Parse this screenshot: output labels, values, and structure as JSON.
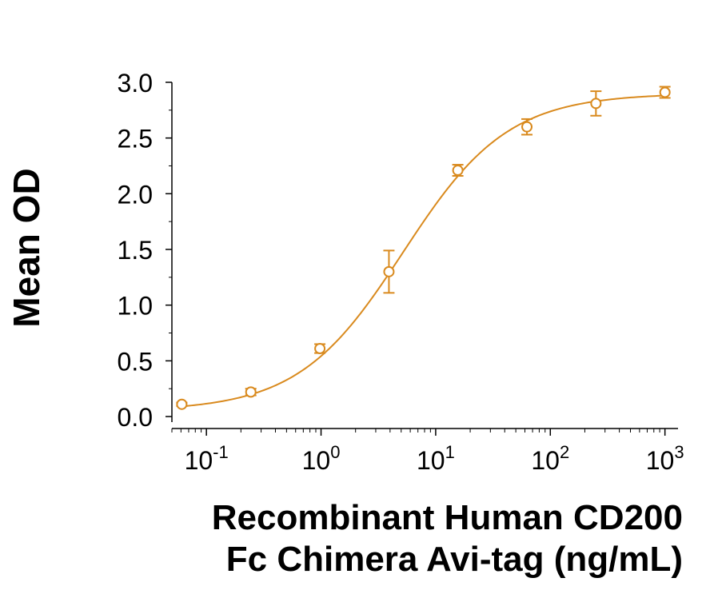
{
  "chart_data": {
    "type": "scatter",
    "title": "",
    "ylabel": "Mean OD",
    "xlabel_lines": [
      "Recombinant Human CD200",
      "Fc Chimera Avi-tag (ng/mL)"
    ],
    "xscale": "log",
    "xlim": [
      0.05,
      1300
    ],
    "ylim": [
      -0.05,
      3.1
    ],
    "grid": false,
    "legend": "none",
    "color": "#d98a1e",
    "y_ticks": [
      "0.0",
      "0.5",
      "1.0",
      "1.5",
      "2.0",
      "2.5",
      "3.0"
    ],
    "x_ticks": [
      {
        "base": "10",
        "exp": "-1"
      },
      {
        "base": "10",
        "exp": "0"
      },
      {
        "base": "10",
        "exp": "1"
      },
      {
        "base": "10",
        "exp": "2"
      },
      {
        "base": "10",
        "exp": "3"
      }
    ],
    "series": [
      {
        "x": [
          0.061,
          0.244,
          0.977,
          3.91,
          15.6,
          62.5,
          250,
          1000
        ],
        "y": [
          0.11,
          0.22,
          0.61,
          1.3,
          2.21,
          2.6,
          2.81,
          2.91
        ],
        "yerr": [
          0.015,
          0.03,
          0.04,
          0.19,
          0.05,
          0.07,
          0.11,
          0.05
        ]
      }
    ],
    "fit": {
      "type": "4PL",
      "bottom": 0.05,
      "top": 2.9,
      "ec50": 5.2,
      "hill": 0.95
    }
  }
}
